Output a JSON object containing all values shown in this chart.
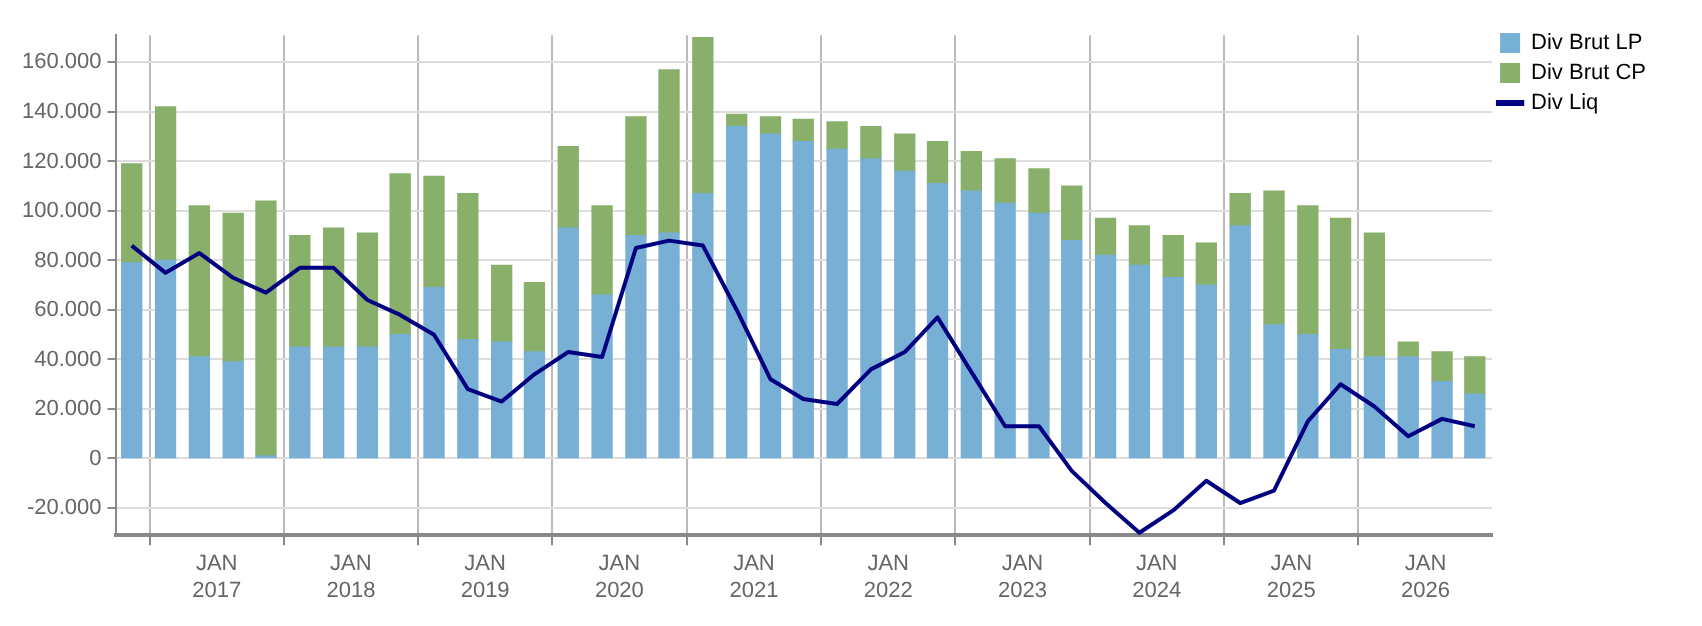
{
  "chart_data": {
    "type": "bar",
    "stacked": true,
    "legend": "top right",
    "grid": true,
    "x": [
      "2016-05-15",
      "2016-08-15",
      "2016-11-15",
      "2017-02-15",
      "2017-05-15",
      "2017-08-15",
      "2017-11-15",
      "2018-02-15",
      "2018-05-15",
      "2018-08-15",
      "2018-11-15",
      "2019-02-15",
      "2019-05-15",
      "2019-08-15",
      "2019-11-15",
      "2020-02-15",
      "2020-05-15",
      "2020-08-15",
      "2020-11-15",
      "2021-02-15",
      "2021-05-15",
      "2021-08-15",
      "2021-11-15",
      "2022-02-15",
      "2022-05-15",
      "2022-08-15",
      "2022-11-15",
      "2023-02-15",
      "2023-05-15",
      "2023-08-15",
      "2023-11-15",
      "2024-02-15",
      "2024-05-15",
      "2024-08-15",
      "2024-11-15",
      "2025-02-15",
      "2025-05-15",
      "2025-08-15",
      "2025-11-15",
      "2026-02-15",
      "2026-05-15"
    ],
    "series": [
      {
        "name": "Div Brut LP",
        "color": "#77b0d4",
        "values": [
          79000,
          80000,
          41000,
          39000,
          1000,
          45000,
          45000,
          45000,
          50000,
          69000,
          48000,
          47000,
          43000,
          93000,
          66000,
          90000,
          91000,
          107000,
          134000,
          131000,
          128000,
          125000,
          121000,
          116000,
          111000,
          108000,
          103000,
          99000,
          88000,
          82000,
          78000,
          73000,
          70000,
          94000,
          54000,
          50000,
          44000,
          41000,
          41000,
          31000,
          26000
        ]
      },
      {
        "name": "Div Brut CP",
        "color": "#88b06a",
        "values": [
          40000,
          62000,
          61000,
          60000,
          103000,
          45000,
          48000,
          46000,
          65000,
          45000,
          59000,
          31000,
          28000,
          33000,
          36000,
          48000,
          66000,
          63000,
          5000,
          7000,
          9000,
          11000,
          13000,
          15000,
          17000,
          16000,
          18000,
          18000,
          22000,
          15000,
          16000,
          17000,
          17000,
          13000,
          54000,
          52000,
          53000,
          50000,
          6000,
          12000,
          15000
        ]
      },
      {
        "name": "Div Liq",
        "type": "line",
        "color": "#000080",
        "values": [
          86000,
          75000,
          83000,
          73000,
          67000,
          77000,
          77000,
          64000,
          58000,
          50000,
          28000,
          23000,
          34000,
          43000,
          41000,
          85000,
          88000,
          86000,
          60000,
          32000,
          24000,
          22000,
          36000,
          43000,
          57000,
          35000,
          13000,
          13000,
          -5000,
          -18000,
          -30000,
          -21000,
          -9000,
          -18000,
          -13000,
          15000,
          30000,
          21000,
          9000,
          16000,
          13000
        ]
      }
    ],
    "xlim": [
      "2016-04-01",
      "2026-07-01"
    ],
    "xticks": [
      {
        "value": "2017-01-01",
        "label": "JAN\n2017"
      },
      {
        "value": "2018-01-01",
        "label": "JAN\n2018"
      },
      {
        "value": "2019-01-01",
        "label": "JAN\n2019"
      },
      {
        "value": "2020-01-01",
        "label": "JAN\n2020"
      },
      {
        "value": "2021-01-01",
        "label": "JAN\n2021"
      },
      {
        "value": "2022-01-01",
        "label": "JAN\n2022"
      },
      {
        "value": "2023-01-01",
        "label": "JAN\n2023"
      },
      {
        "value": "2024-01-01",
        "label": "JAN\n2024"
      },
      {
        "value": "2025-01-01",
        "label": "JAN\n2025"
      },
      {
        "value": "2026-01-01",
        "label": "JAN\n2026"
      }
    ],
    "ylim": [
      -31000,
      171000
    ],
    "yticks": [
      {
        "value": -20000,
        "label": "-20.000"
      },
      0,
      {
        "value": 20000,
        "label": "20.000"
      },
      {
        "value": 40000,
        "label": "40.000"
      },
      {
        "value": 60000,
        "label": "60.000"
      },
      {
        "value": 80000,
        "label": "80.000"
      },
      {
        "value": 100000,
        "label": "100.000"
      },
      {
        "value": 120000,
        "label": "120.000"
      },
      {
        "value": 140000,
        "label": "140.000"
      },
      {
        "value": 160000,
        "label": "160.000"
      }
    ]
  }
}
